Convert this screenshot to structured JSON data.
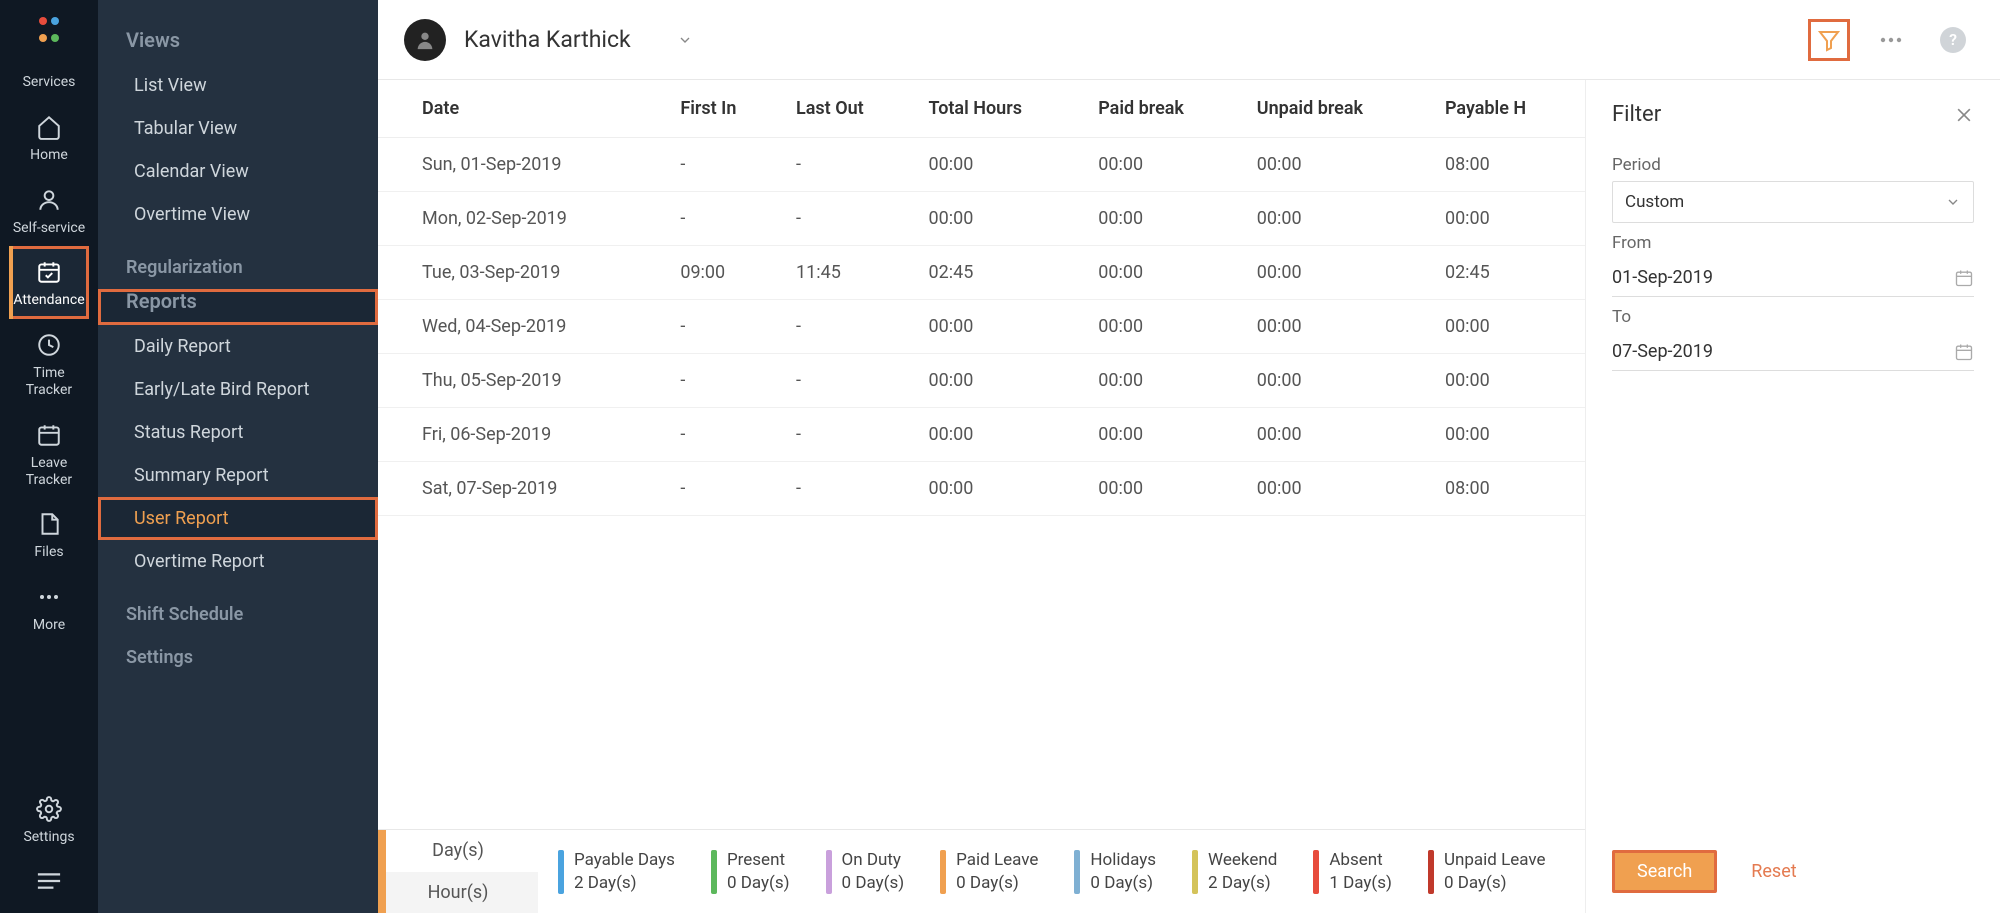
{
  "rail": {
    "logo_colors": [
      "#e74c3c",
      "#4aa3df",
      "#f0a050",
      "#5cb85c"
    ],
    "items": [
      {
        "key": "services",
        "label": "Services"
      },
      {
        "key": "home",
        "label": "Home"
      },
      {
        "key": "self",
        "label": "Self-service"
      },
      {
        "key": "attendance",
        "label": "Attendance",
        "active": true,
        "highlight": true
      },
      {
        "key": "time",
        "label": "Time Tracker"
      },
      {
        "key": "leave",
        "label": "Leave Tracker"
      },
      {
        "key": "files",
        "label": "Files"
      },
      {
        "key": "more",
        "label": "More"
      }
    ],
    "settings_label": "Settings"
  },
  "sidebar": {
    "sections": [
      {
        "header": "Views",
        "highlight": false,
        "items": [
          {
            "label": "List View"
          },
          {
            "label": "Tabular View"
          },
          {
            "label": "Calendar View"
          },
          {
            "label": "Overtime View"
          }
        ]
      },
      {
        "header": null,
        "items": [
          {
            "label": "Regularization",
            "top": true
          }
        ]
      },
      {
        "header": "Reports",
        "highlight": true,
        "items": [
          {
            "label": "Daily Report"
          },
          {
            "label": "Early/Late Bird Report"
          },
          {
            "label": "Status Report"
          },
          {
            "label": "Summary Report"
          },
          {
            "label": "User Report",
            "active": true,
            "highlight": true
          },
          {
            "label": "Overtime Report"
          }
        ]
      },
      {
        "header": null,
        "items": [
          {
            "label": "Shift Schedule",
            "top": true
          }
        ]
      },
      {
        "header": null,
        "items": [
          {
            "label": "Settings",
            "top": true
          }
        ]
      }
    ]
  },
  "header": {
    "user_name": "Kavitha Karthick"
  },
  "table": {
    "columns": [
      "Date",
      "First In",
      "Last Out",
      "Total Hours",
      "Paid break",
      "Unpaid break",
      "Payable H"
    ],
    "rows": [
      [
        "Sun, 01-Sep-2019",
        "-",
        "-",
        "00:00",
        "00:00",
        "00:00",
        "08:00"
      ],
      [
        "Mon, 02-Sep-2019",
        "-",
        "-",
        "00:00",
        "00:00",
        "00:00",
        "00:00"
      ],
      [
        "Tue, 03-Sep-2019",
        "09:00",
        "11:45",
        "02:45",
        "00:00",
        "00:00",
        "02:45"
      ],
      [
        "Wed, 04-Sep-2019",
        "-",
        "-",
        "00:00",
        "00:00",
        "00:00",
        "00:00"
      ],
      [
        "Thu, 05-Sep-2019",
        "-",
        "-",
        "00:00",
        "00:00",
        "00:00",
        "00:00"
      ],
      [
        "Fri, 06-Sep-2019",
        "-",
        "-",
        "00:00",
        "00:00",
        "00:00",
        "00:00"
      ],
      [
        "Sat, 07-Sep-2019",
        "-",
        "-",
        "00:00",
        "00:00",
        "00:00",
        "08:00"
      ]
    ]
  },
  "summary": {
    "tabs": [
      "Day(s)",
      "Hour(s)"
    ],
    "active_tab": 0,
    "accent": "#f0a050",
    "items": [
      {
        "label": "Payable Days",
        "value": "2 Day(s)",
        "color": "#4aa3df"
      },
      {
        "label": "Present",
        "value": "0 Day(s)",
        "color": "#5cb85c"
      },
      {
        "label": "On Duty",
        "value": "0 Day(s)",
        "color": "#c9a0dc"
      },
      {
        "label": "Paid Leave",
        "value": "0 Day(s)",
        "color": "#f0a050"
      },
      {
        "label": "Holidays",
        "value": "0 Day(s)",
        "color": "#7fb0d3"
      },
      {
        "label": "Weekend",
        "value": "2 Day(s)",
        "color": "#d4c35a"
      },
      {
        "label": "Absent",
        "value": "1 Day(s)",
        "color": "#e74c3c"
      },
      {
        "label": "Unpaid Leave",
        "value": "0 Day(s)",
        "color": "#c0392b"
      }
    ]
  },
  "filter": {
    "title": "Filter",
    "period_label": "Period",
    "period_value": "Custom",
    "from_label": "From",
    "from_value": "01-Sep-2019",
    "to_label": "To",
    "to_value": "07-Sep-2019",
    "search_label": "Search",
    "reset_label": "Reset"
  },
  "colors": {
    "highlight": "#e06b3f",
    "accent": "#f0a050",
    "rail_bg": "#0f1823",
    "sidebar_bg": "#243140"
  }
}
